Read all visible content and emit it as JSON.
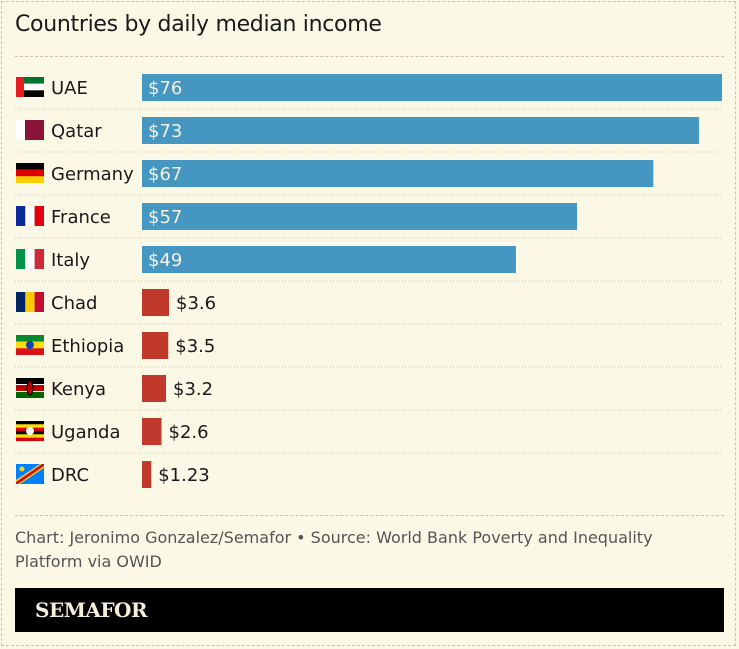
{
  "title": "Countries by daily median income",
  "source": "Chart: Jeronimo Gonzalez/Semafor • Source: World Bank Poverty and Inequality Platform via OWID",
  "brand": "SEMAFOR",
  "colors": {
    "high": "#4596c0",
    "low": "#c0392b",
    "background": "#fbf8e6"
  },
  "chart_data": {
    "type": "bar",
    "orientation": "horizontal",
    "title": "Countries by daily median income",
    "categories": [
      "UAE",
      "Qatar",
      "Germany",
      "France",
      "Italy",
      "Chad",
      "Ethiopia",
      "Kenya",
      "Uganda",
      "DRC"
    ],
    "values": [
      76,
      73,
      67,
      57,
      49,
      3.6,
      3.5,
      3.2,
      2.6,
      1.23
    ],
    "labels": [
      "$76",
      "$73",
      "$67",
      "$57",
      "$49",
      "$3.6",
      "$3.5",
      "$3.2",
      "$2.6",
      "$1.23"
    ],
    "flag_icons": [
      "uae-flag-icon",
      "qatar-flag-icon",
      "germany-flag-icon",
      "france-flag-icon",
      "italy-flag-icon",
      "chad-flag-icon",
      "ethiopia-flag-icon",
      "kenya-flag-icon",
      "uganda-flag-icon",
      "drc-flag-icon"
    ],
    "grid": false
  }
}
